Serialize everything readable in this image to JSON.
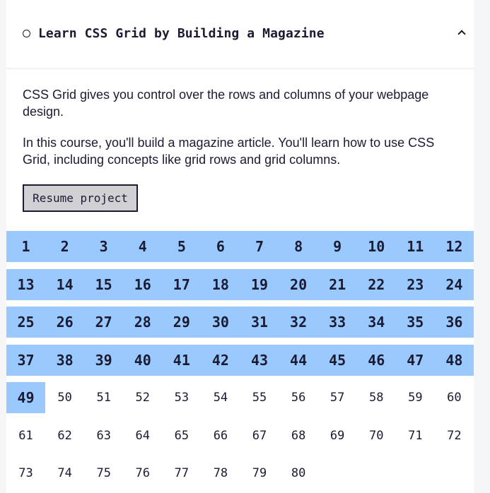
{
  "course": {
    "title": "Learn CSS Grid by Building a Magazine",
    "description_1": "CSS Grid gives you control over the rows and columns of your webpage design.",
    "description_2": "In this course, you'll build a magazine article. You'll learn how to use CSS Grid, including concepts like grid rows and grid columns.",
    "resume_label": "Resume project",
    "completed_steps": 49,
    "total_steps": 80
  },
  "colors": {
    "completed": "#99c9ff",
    "text": "#1b1b32",
    "button": "#d0d0d5"
  },
  "icons": {
    "status": "radio-circle-icon",
    "toggle": "chevron-up-icon"
  }
}
